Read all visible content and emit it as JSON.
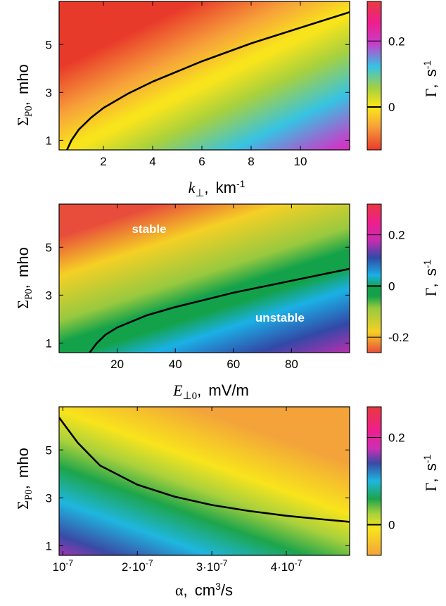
{
  "chart_data": [
    {
      "type": "heatmap",
      "xlabel": {
        "symbol": "k",
        "sub": "⊥",
        "unit_base": "km",
        "unit_sup": "-1"
      },
      "ylabel": {
        "symbol": "Σ",
        "sub": "P0",
        "unit": "mho"
      },
      "colorbar_label": {
        "symbol": "Γ",
        "unit_base": "s",
        "unit_sup": "-1"
      },
      "xlim": [
        0.2,
        12
      ],
      "ylim": [
        0.6,
        6.8
      ],
      "xticks": [
        2,
        4,
        6,
        8,
        10
      ],
      "xtick_labels": [
        "2",
        "4",
        "6",
        "8",
        "10"
      ],
      "yticks": [
        1,
        3,
        5
      ],
      "ytick_labels": [
        "1",
        "3",
        "5"
      ],
      "clim": [
        -0.13,
        0.32
      ],
      "cticks": [
        0,
        0.2
      ],
      "ctick_labels": [
        "0",
        "0.2"
      ],
      "colormap": [
        "#e83a2a",
        "#f7a23a",
        "#f8e41c",
        "#f8e41c",
        "#a9d13c",
        "#36c3e3",
        "#c93bc8",
        "#ee1e8c",
        "#e73a3e"
      ],
      "colormap_stops": [
        0.0,
        0.16,
        0.28,
        0.3,
        0.41,
        0.56,
        0.72,
        0.86,
        1.0
      ],
      "zero_contour": {
        "x": [
          0.52,
          0.7,
          1,
          1.5,
          2,
          3,
          4,
          6,
          8,
          10,
          12
        ],
        "y": [
          0.6,
          1.0,
          1.45,
          1.95,
          2.35,
          2.95,
          3.45,
          4.3,
          5.05,
          5.7,
          6.35
        ]
      },
      "annotations": []
    },
    {
      "type": "heatmap",
      "xlabel": {
        "symbol": "E",
        "sub": "⊥0",
        "unit_base": "mV/m",
        "unit_sup": ""
      },
      "ylabel": {
        "symbol": "Σ",
        "sub": "P0",
        "unit": "mho"
      },
      "colorbar_label": {
        "symbol": "Γ",
        "unit_base": "s",
        "unit_sup": "-1"
      },
      "xlim": [
        0,
        100
      ],
      "ylim": [
        0.6,
        6.8
      ],
      "xticks": [
        20,
        40,
        60,
        80
      ],
      "xtick_labels": [
        "20",
        "40",
        "60",
        "80"
      ],
      "yticks": [
        1,
        3,
        5
      ],
      "ytick_labels": [
        "1",
        "3",
        "5"
      ],
      "clim": [
        -0.26,
        0.32
      ],
      "cticks": [
        -0.2,
        0,
        0.2
      ],
      "ctick_labels": [
        "-0.2",
        "0",
        "0.2"
      ],
      "colormap": [
        "#e84d3b",
        "#f5d025",
        "#98c93f",
        "#13a24a",
        "#13a24a",
        "#1bb0e6",
        "#3249a7",
        "#cb2bb0",
        "#ee1e8c",
        "#e73a3e"
      ],
      "colormap_stops": [
        0.0,
        0.14,
        0.3,
        0.38,
        0.44,
        0.52,
        0.64,
        0.76,
        0.88,
        1.0
      ],
      "zero_contour": {
        "x": [
          10.5,
          13,
          16,
          20,
          30,
          40,
          50,
          60,
          70,
          80,
          90,
          100
        ],
        "y": [
          0.6,
          1.0,
          1.35,
          1.65,
          2.15,
          2.5,
          2.8,
          3.1,
          3.35,
          3.6,
          3.85,
          4.1
        ]
      },
      "annotations": [
        {
          "text": "stable",
          "x": 31,
          "y": 5.6
        },
        {
          "text": "unstable",
          "x": 76,
          "y": 1.9
        }
      ]
    },
    {
      "type": "heatmap",
      "xlabel": {
        "symbol": "α",
        "sub": "",
        "unit_base": "cm",
        "unit_sup": "3",
        "unit_rest": "/s"
      },
      "ylabel": {
        "symbol": "Σ",
        "sub": "P0",
        "unit": "mho"
      },
      "colorbar_label": {
        "symbol": "Γ",
        "unit_base": "s",
        "unit_sup": "-1"
      },
      "xlim": [
        9.5e-08,
        4.85e-07
      ],
      "ylim": [
        0.6,
        6.8
      ],
      "xticks": [
        1e-07,
        2e-07,
        3e-07,
        4e-07
      ],
      "xtick_labels": [
        {
          "base": "10",
          "sup": "-7"
        },
        {
          "base": "2·10",
          "sup": "-7"
        },
        {
          "base": "3·10",
          "sup": "-7"
        },
        {
          "base": "4·10",
          "sup": "-7"
        }
      ],
      "yticks": [
        1,
        3,
        5
      ],
      "ytick_labels": [
        "1",
        "3",
        "5"
      ],
      "clim": [
        -0.07,
        0.27
      ],
      "cticks": [
        0,
        0.2
      ],
      "ctick_labels": [
        "0",
        "0.2"
      ],
      "colormap": [
        "#f3a33a",
        "#f8e41c",
        "#a9d13c",
        "#1da54b",
        "#1fb6df",
        "#3a4aa5",
        "#cc2fb4",
        "#ee1e8c",
        "#e73a3e"
      ],
      "colormap_stops": [
        0.0,
        0.18,
        0.28,
        0.38,
        0.5,
        0.62,
        0.72,
        0.84,
        1.0
      ],
      "zero_contour": {
        "x": [
          9.5e-08,
          1.2e-07,
          1.5e-07,
          2e-07,
          2.5e-07,
          3e-07,
          3.5e-07,
          4e-07,
          4.5e-07,
          4.85e-07
        ],
        "y": [
          6.35,
          5.3,
          4.35,
          3.55,
          3.05,
          2.7,
          2.45,
          2.25,
          2.1,
          2.0
        ]
      },
      "annotations": []
    }
  ]
}
